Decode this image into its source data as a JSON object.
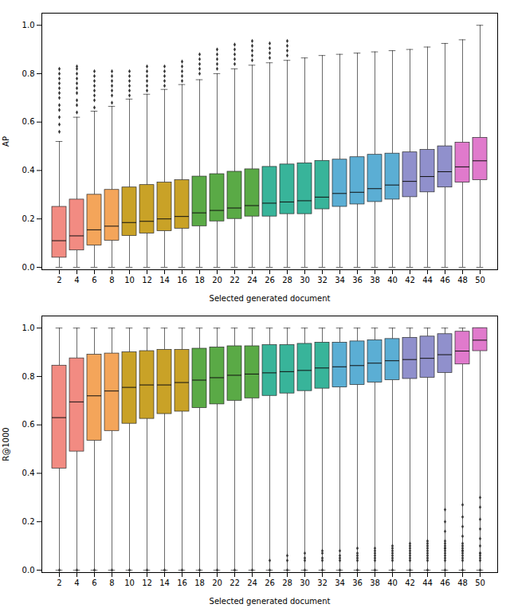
{
  "chart_data": [
    {
      "type": "box",
      "xlabel": "Selected generated document",
      "ylabel": "AP",
      "categories": [
        "2",
        "4",
        "6",
        "8",
        "10",
        "12",
        "14",
        "16",
        "18",
        "20",
        "22",
        "24",
        "26",
        "28",
        "30",
        "32",
        "34",
        "36",
        "38",
        "40",
        "42",
        "44",
        "46",
        "48",
        "50"
      ],
      "colors": [
        "#F28B82",
        "#F28B82",
        "#F4A55A",
        "#F4A55A",
        "#C9A227",
        "#C9A227",
        "#C9A227",
        "#C9A227",
        "#5AAA46",
        "#5AAA46",
        "#5AAA46",
        "#5AAA46",
        "#38B49A",
        "#38B49A",
        "#38B49A",
        "#38B49A",
        "#5BAED4",
        "#5BAED4",
        "#5BAED4",
        "#5BAED4",
        "#9090CC",
        "#9090CC",
        "#9090CC",
        "#E07ACC",
        "#E07ACC"
      ],
      "whislo": [
        0.0,
        0.0,
        0.0,
        0.0,
        0.0,
        0.0,
        0.0,
        0.0,
        0.0,
        0.0,
        0.0,
        0.0,
        0.0,
        0.0,
        0.0,
        0.0,
        0.0,
        0.0,
        0.0,
        0.0,
        0.0,
        0.0,
        0.0,
        0.0,
        0.0
      ],
      "q1": [
        0.04,
        0.07,
        0.09,
        0.11,
        0.13,
        0.14,
        0.15,
        0.16,
        0.17,
        0.19,
        0.2,
        0.21,
        0.21,
        0.22,
        0.22,
        0.24,
        0.25,
        0.26,
        0.27,
        0.28,
        0.29,
        0.31,
        0.33,
        0.35,
        0.36
      ],
      "med": [
        0.11,
        0.13,
        0.155,
        0.17,
        0.185,
        0.19,
        0.2,
        0.21,
        0.225,
        0.235,
        0.245,
        0.255,
        0.265,
        0.27,
        0.275,
        0.29,
        0.305,
        0.31,
        0.325,
        0.34,
        0.355,
        0.375,
        0.395,
        0.415,
        0.44
      ],
      "q3": [
        0.25,
        0.28,
        0.3,
        0.32,
        0.33,
        0.34,
        0.35,
        0.36,
        0.375,
        0.385,
        0.395,
        0.405,
        0.415,
        0.425,
        0.43,
        0.44,
        0.445,
        0.455,
        0.465,
        0.47,
        0.475,
        0.485,
        0.5,
        0.515,
        0.535
      ],
      "whishi": [
        0.52,
        0.62,
        0.645,
        0.665,
        0.695,
        0.715,
        0.735,
        0.755,
        0.775,
        0.8,
        0.82,
        0.835,
        0.845,
        0.855,
        0.865,
        0.875,
        0.88,
        0.885,
        0.89,
        0.895,
        0.9,
        0.91,
        0.925,
        0.94,
        1.0
      ],
      "fliers": [
        [
          0.56,
          0.59,
          0.62,
          0.65,
          0.67,
          0.7,
          0.72,
          0.74,
          0.76,
          0.78,
          0.8,
          0.82
        ],
        [
          0.64,
          0.67,
          0.69,
          0.72,
          0.74,
          0.76,
          0.78,
          0.8,
          0.82,
          0.83
        ],
        [
          0.66,
          0.69,
          0.71,
          0.73,
          0.75,
          0.77,
          0.79,
          0.81
        ],
        [
          0.68,
          0.71,
          0.73,
          0.75,
          0.77,
          0.79,
          0.81
        ],
        [
          0.71,
          0.73,
          0.75,
          0.77,
          0.79,
          0.81
        ],
        [
          0.73,
          0.75,
          0.77,
          0.79,
          0.81,
          0.83
        ],
        [
          0.75,
          0.77,
          0.79,
          0.81,
          0.83
        ],
        [
          0.77,
          0.79,
          0.81,
          0.83,
          0.85
        ],
        [
          0.8,
          0.82,
          0.84,
          0.86,
          0.88
        ],
        [
          0.82,
          0.84,
          0.86,
          0.88,
          0.9
        ],
        [
          0.84,
          0.86,
          0.88,
          0.9,
          0.92
        ],
        [
          0.855,
          0.875,
          0.895,
          0.915,
          0.935
        ],
        [
          0.865,
          0.885,
          0.905,
          0.925
        ],
        [
          0.875,
          0.895,
          0.915,
          0.935
        ],
        [],
        [],
        [],
        [],
        [],
        [],
        [],
        [],
        [],
        [],
        []
      ],
      "ylim": [
        -0.01,
        1.05
      ],
      "yticks": [
        {
          "value": 0.0,
          "label": "0.0"
        },
        0.2,
        0.4,
        0.6,
        0.8,
        {
          "value": 1.0,
          "label": "1.0"
        }
      ]
    },
    {
      "type": "box",
      "xlabel": "Selected generated document",
      "ylabel": "R@1000",
      "categories": [
        "2",
        "4",
        "6",
        "8",
        "10",
        "12",
        "14",
        "16",
        "18",
        "20",
        "22",
        "24",
        "26",
        "28",
        "30",
        "32",
        "34",
        "36",
        "38",
        "40",
        "42",
        "44",
        "46",
        "48",
        "50"
      ],
      "colors": [
        "#F28B82",
        "#F28B82",
        "#F4A55A",
        "#F4A55A",
        "#C9A227",
        "#C9A227",
        "#C9A227",
        "#C9A227",
        "#5AAA46",
        "#5AAA46",
        "#5AAA46",
        "#5AAA46",
        "#38B49A",
        "#38B49A",
        "#38B49A",
        "#38B49A",
        "#5BAED4",
        "#5BAED4",
        "#5BAED4",
        "#5BAED4",
        "#9090CC",
        "#9090CC",
        "#9090CC",
        "#E07ACC",
        "#E07ACC"
      ],
      "whislo": [
        0.0,
        0.0,
        0.0,
        0.0,
        0.0,
        0.0,
        0.0,
        0.0,
        0.0,
        0.0,
        0.0,
        0.0,
        0.0,
        0.0,
        0.0,
        0.0,
        0.0,
        0.0,
        0.0,
        0.0,
        0.0,
        0.0,
        0.0,
        0.0,
        0.0
      ],
      "q1": [
        0.42,
        0.49,
        0.535,
        0.575,
        0.605,
        0.625,
        0.645,
        0.655,
        0.67,
        0.685,
        0.7,
        0.71,
        0.72,
        0.73,
        0.74,
        0.75,
        0.755,
        0.765,
        0.775,
        0.785,
        0.79,
        0.795,
        0.815,
        0.85,
        0.905
      ],
      "med": [
        0.63,
        0.695,
        0.72,
        0.74,
        0.755,
        0.765,
        0.765,
        0.775,
        0.785,
        0.795,
        0.805,
        0.81,
        0.815,
        0.82,
        0.825,
        0.835,
        0.84,
        0.845,
        0.855,
        0.865,
        0.87,
        0.875,
        0.89,
        0.905,
        0.95
      ],
      "q3": [
        0.845,
        0.875,
        0.89,
        0.895,
        0.9,
        0.905,
        0.91,
        0.91,
        0.915,
        0.92,
        0.925,
        0.925,
        0.93,
        0.93,
        0.935,
        0.94,
        0.94,
        0.945,
        0.95,
        0.955,
        0.96,
        0.965,
        0.975,
        0.985,
        1.0
      ],
      "whishi": [
        1.0,
        1.0,
        1.0,
        1.0,
        1.0,
        1.0,
        1.0,
        1.0,
        1.0,
        1.0,
        1.0,
        1.0,
        1.0,
        1.0,
        1.0,
        1.0,
        1.0,
        1.0,
        1.0,
        1.0,
        1.0,
        1.0,
        1.0,
        1.0,
        1.0
      ],
      "fliers_top": [
        [],
        [],
        [],
        [],
        [],
        [],
        [],
        [],
        [],
        [],
        [],
        [],
        [],
        [],
        [],
        [],
        [],
        [],
        [],
        [],
        [],
        [],
        [
          0.09,
          0.12,
          0.16,
          0.2,
          0.25
        ],
        [
          0.08,
          0.11,
          0.14,
          0.18,
          0.22,
          0.27
        ],
        [
          0.07,
          0.1,
          0.13,
          0.17,
          0.21,
          0.26,
          0.3
        ]
      ],
      "fliers_bottom": [
        [
          0.0
        ],
        [
          0.0
        ],
        [
          0.0
        ],
        [
          0.0
        ],
        [
          0.0
        ],
        [
          0.0
        ],
        [
          0.0
        ],
        [
          0.0
        ],
        [
          0.0
        ],
        [
          0.0
        ],
        [
          0.0
        ],
        [
          0.0
        ],
        [
          0.0,
          0.04
        ],
        [
          0.0,
          0.04,
          0.06
        ],
        [
          0.0,
          0.04,
          0.05,
          0.07
        ],
        [
          0.0,
          0.04,
          0.05,
          0.07,
          0.08
        ],
        [
          0.0,
          0.04,
          0.05,
          0.06,
          0.08
        ],
        [
          0.0,
          0.04,
          0.05,
          0.06,
          0.07,
          0.09
        ],
        [
          0.0,
          0.04,
          0.05,
          0.06,
          0.07,
          0.08,
          0.09
        ],
        [
          0.0,
          0.04,
          0.05,
          0.06,
          0.07,
          0.08,
          0.09,
          0.1
        ],
        [
          0.0,
          0.04,
          0.05,
          0.06,
          0.07,
          0.08,
          0.09,
          0.1,
          0.11
        ],
        [
          0.0,
          0.04,
          0.05,
          0.06,
          0.07,
          0.08,
          0.09,
          0.1,
          0.11,
          0.12
        ],
        [
          0.0,
          0.04,
          0.05,
          0.06,
          0.07,
          0.08,
          0.09,
          0.1,
          0.11
        ],
        [
          0.0,
          0.04,
          0.05,
          0.06,
          0.07,
          0.08,
          0.09,
          0.1
        ],
        [
          0.0,
          0.04,
          0.05,
          0.06,
          0.07
        ]
      ],
      "ylim": [
        -0.01,
        1.05
      ],
      "yticks": [
        {
          "value": 0.0,
          "label": "0.0"
        },
        0.2,
        0.4,
        0.6,
        0.8,
        {
          "value": 1.0,
          "label": "1.0"
        }
      ]
    }
  ]
}
